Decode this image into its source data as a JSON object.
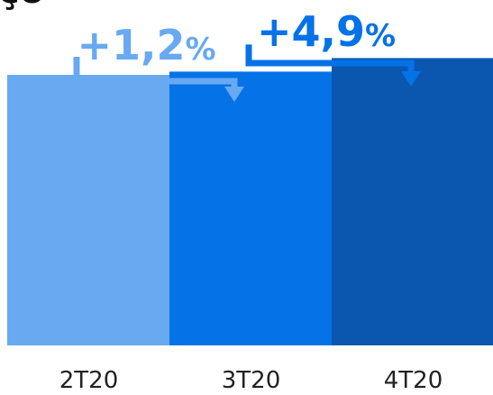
{
  "chart_data": {
    "type": "bar",
    "title_fragment": "ço",
    "categories": [
      "2T20",
      "3T20",
      "4T20"
    ],
    "values": [
      100,
      101.2,
      106.2
    ],
    "colors": [
      "#68a9f2",
      "#0572e8",
      "#0b57b0"
    ],
    "ylim": [
      0,
      120
    ],
    "grid": false,
    "legend": "none",
    "annotations": [
      {
        "label": "+1,2",
        "unit": "%",
        "from": 0,
        "to": 1,
        "color": "#68a9f2"
      },
      {
        "label": "+4,9",
        "unit": "%",
        "from": 1,
        "to": 2,
        "color": "#0572e8"
      }
    ]
  }
}
